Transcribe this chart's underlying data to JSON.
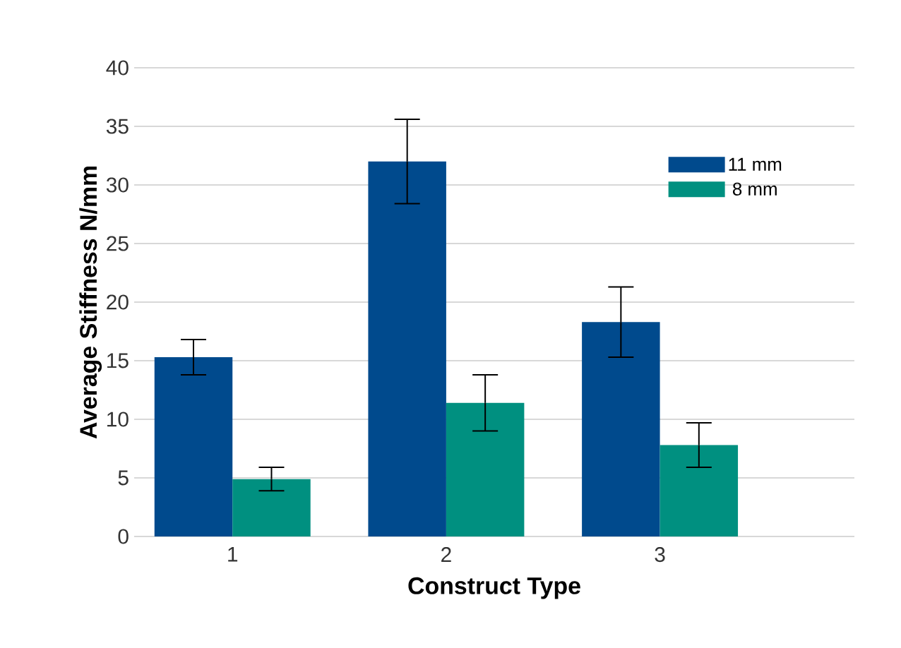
{
  "chart_data": {
    "type": "bar",
    "xlabel": "Construct Type",
    "ylabel": "Average Stiffness N/mm",
    "categories": [
      "1",
      "2",
      "3"
    ],
    "series": [
      {
        "name": "11 mm",
        "color": "#004a8d",
        "values": [
          15.3,
          32.0,
          18.3
        ],
        "errors": [
          1.5,
          3.6,
          3.0
        ]
      },
      {
        "name": "8 mm",
        "color": "#009080",
        "values": [
          4.9,
          11.4,
          7.8
        ],
        "errors": [
          1.0,
          2.4,
          1.9
        ]
      }
    ],
    "ylim": [
      0,
      40
    ],
    "yticks": [
      0,
      5,
      10,
      15,
      20,
      25,
      30,
      35,
      40
    ],
    "grid": "y",
    "legend": "top right"
  }
}
